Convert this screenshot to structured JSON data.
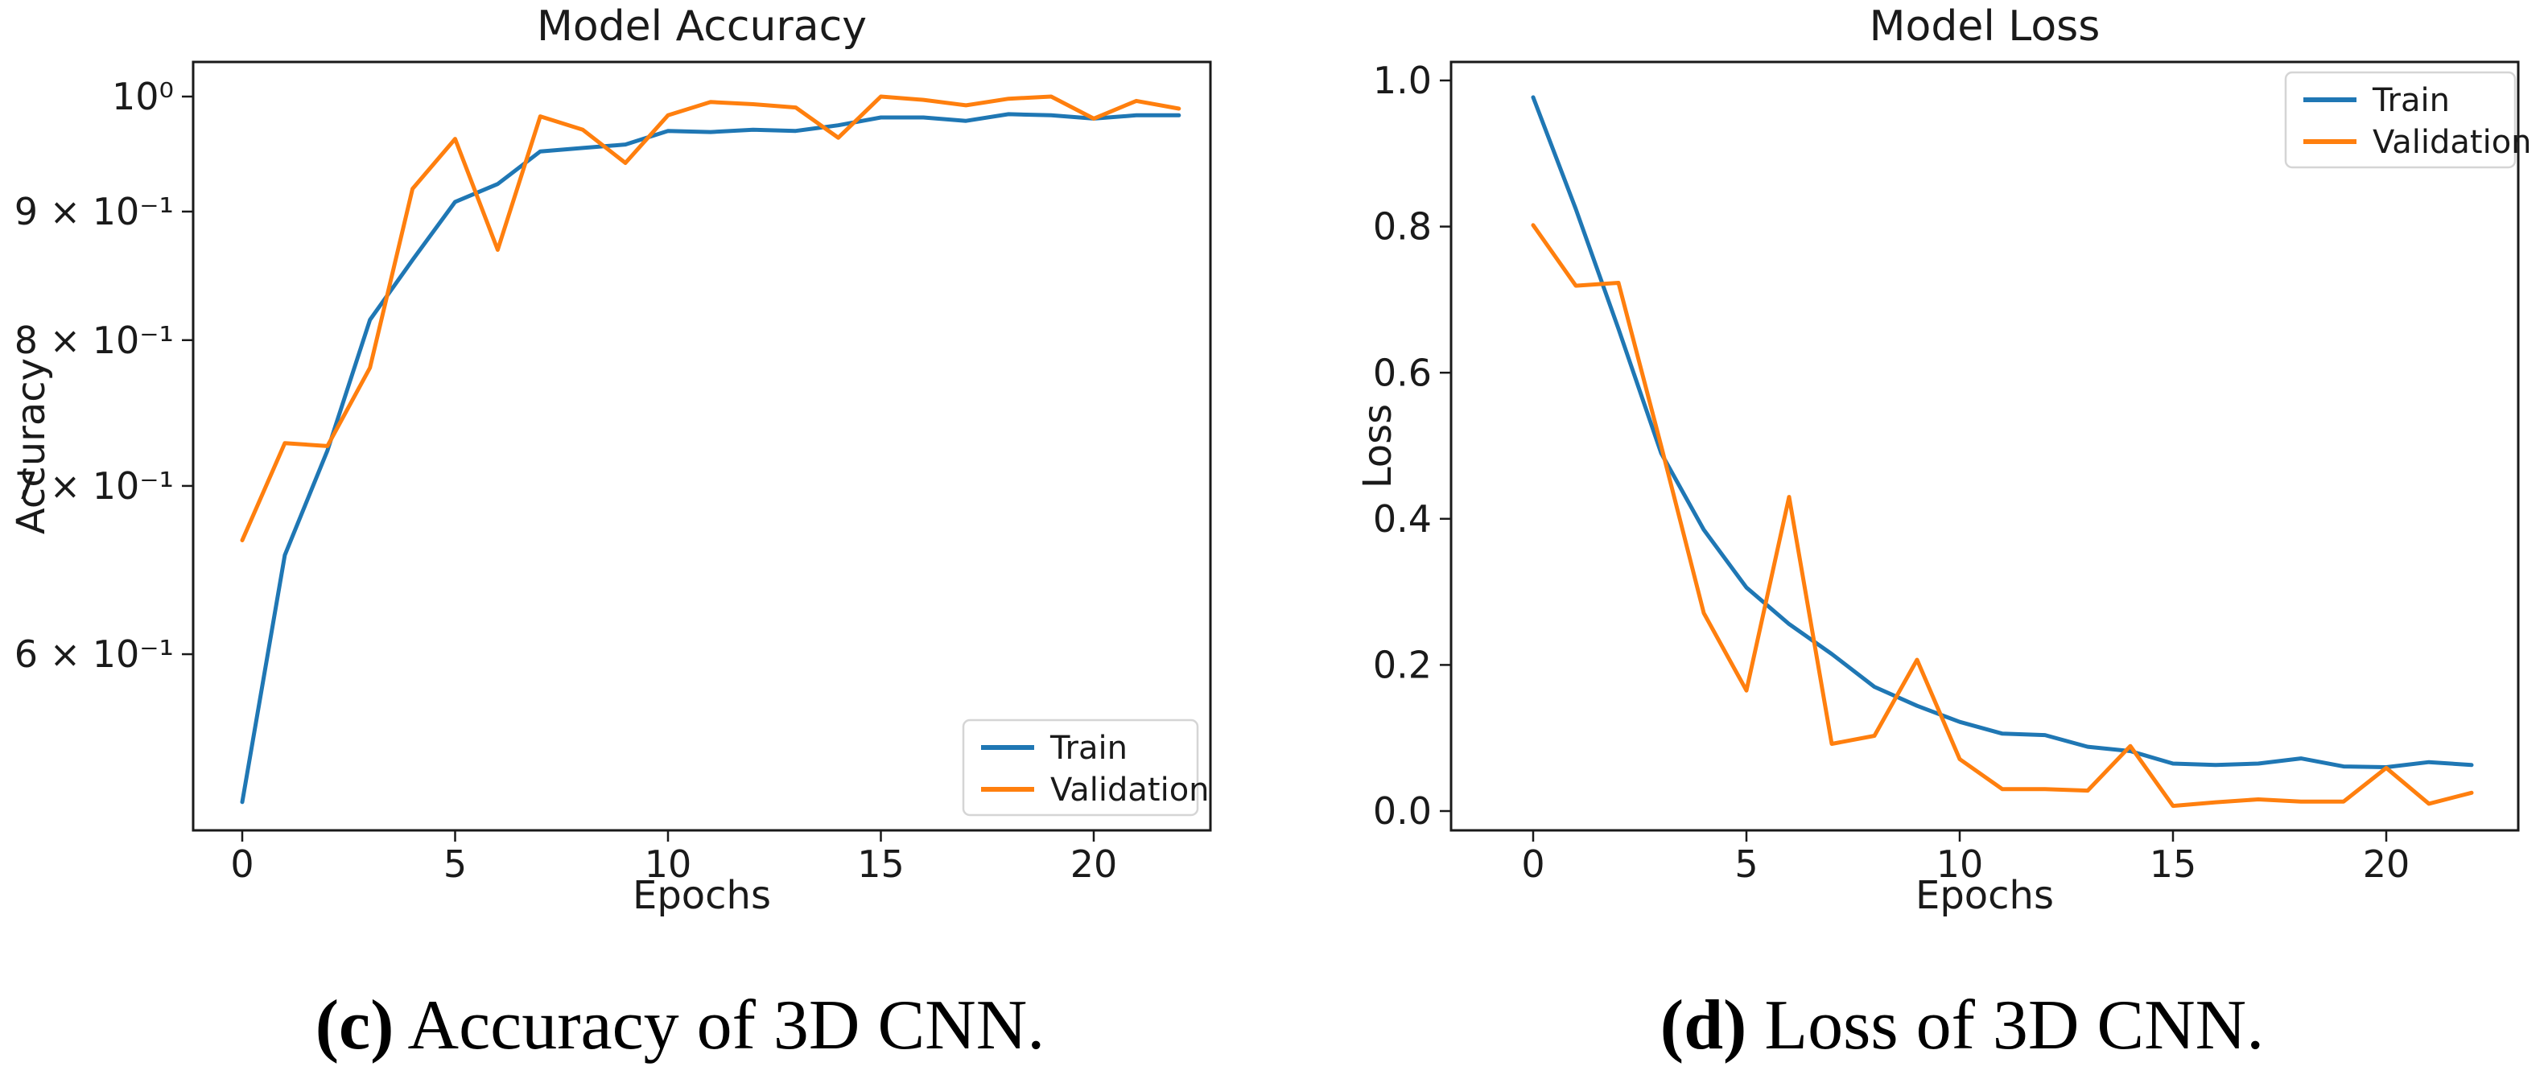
{
  "figure": {
    "captions": {
      "c": {
        "bold": "(c)",
        "text": " Accuracy of 3D CNN."
      },
      "d": {
        "bold": "(d)",
        "text": " Loss of 3D CNN."
      }
    }
  },
  "colors": {
    "train": "#1f77b4",
    "validation": "#ff7f0e",
    "spine": "#1a1a1a",
    "legend_border": "#d5d5d5"
  },
  "chart_data": [
    {
      "type": "line",
      "title": "Model Accuracy",
      "xlabel": "Epochs",
      "ylabel": "Accuracy",
      "yscale": "log",
      "ylim": [
        0.51,
        1.033
      ],
      "xlim": [
        -1.1,
        23.1
      ],
      "grid": false,
      "legend_position": "lower right",
      "x": [
        0,
        1,
        2,
        3,
        4,
        5,
        6,
        7,
        8,
        9,
        10,
        11,
        12,
        13,
        14,
        15,
        16,
        17,
        18,
        19,
        20,
        21,
        22
      ],
      "xticks": [
        0,
        5,
        10,
        15,
        20
      ],
      "yticks": [
        {
          "v": 1.0,
          "label": "10⁰"
        },
        {
          "v": 0.9,
          "label": "9 × 10⁻¹"
        },
        {
          "v": 0.8,
          "label": "8 × 10⁻¹"
        },
        {
          "v": 0.7,
          "label": "7 × 10⁻¹"
        },
        {
          "v": 0.6,
          "label": "6 × 10⁻¹"
        }
      ],
      "series": [
        {
          "name": "Train",
          "values": [
            0.524,
            0.657,
            0.723,
            0.815,
            0.861,
            0.908,
            0.923,
            0.951,
            0.954,
            0.957,
            0.969,
            0.968,
            0.97,
            0.969,
            0.974,
            0.981,
            0.981,
            0.978,
            0.984,
            0.983,
            0.98,
            0.983,
            0.983
          ]
        },
        {
          "name": "Validation",
          "values": [
            0.666,
            0.728,
            0.726,
            0.78,
            0.919,
            0.962,
            0.869,
            0.982,
            0.97,
            0.941,
            0.983,
            0.995,
            0.993,
            0.99,
            0.963,
            1.0,
            0.997,
            0.992,
            0.998,
            1.0,
            0.98,
            0.996,
            0.989
          ]
        }
      ]
    },
    {
      "type": "line",
      "title": "Model Loss",
      "xlabel": "Epochs",
      "ylabel": "Loss",
      "yscale": "linear",
      "ylim": [
        -0.04,
        1.03
      ],
      "xlim": [
        -1.1,
        23.1
      ],
      "grid": false,
      "legend_position": "upper right",
      "x": [
        0,
        1,
        2,
        3,
        4,
        5,
        6,
        7,
        8,
        9,
        10,
        11,
        12,
        13,
        14,
        15,
        16,
        17,
        18,
        19,
        20,
        21,
        22
      ],
      "xticks": [
        0,
        5,
        10,
        15,
        20
      ],
      "yticks": [
        {
          "v": 1.0,
          "label": "1.0"
        },
        {
          "v": 0.8,
          "label": "0.8"
        },
        {
          "v": 0.6,
          "label": "0.6"
        },
        {
          "v": 0.4,
          "label": "0.4"
        },
        {
          "v": 0.2,
          "label": "0.2"
        },
        {
          "v": 0.0,
          "label": "0.0"
        }
      ],
      "series": [
        {
          "name": "Train",
          "values": [
            0.977,
            0.824,
            0.66,
            0.49,
            0.385,
            0.306,
            0.256,
            0.215,
            0.17,
            0.144,
            0.122,
            0.106,
            0.104,
            0.088,
            0.082,
            0.065,
            0.063,
            0.065,
            0.072,
            0.061,
            0.06,
            0.067,
            0.063
          ]
        },
        {
          "name": "Validation",
          "values": [
            0.802,
            0.719,
            0.723,
            0.5,
            0.271,
            0.165,
            0.43,
            0.092,
            0.103,
            0.207,
            0.071,
            0.03,
            0.03,
            0.028,
            0.089,
            0.007,
            0.012,
            0.016,
            0.013,
            0.013,
            0.059,
            0.01,
            0.025
          ]
        }
      ]
    }
  ]
}
